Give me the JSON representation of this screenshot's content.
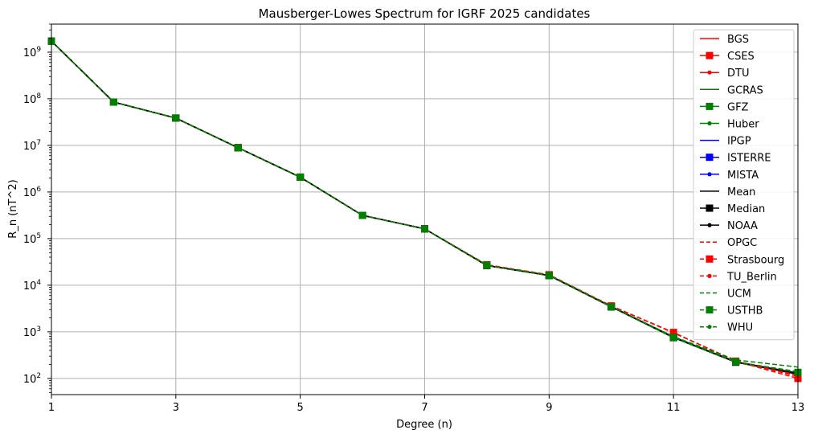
{
  "chart_data": {
    "type": "line",
    "title": "Mausberger-Lowes Spectrum for IGRF 2025 candidates",
    "xlabel": "Degree (n)",
    "ylabel": "R_n (nT^2)",
    "x": [
      1,
      2,
      3,
      4,
      5,
      6,
      7,
      8,
      9,
      10,
      11,
      12,
      13
    ],
    "xlim": [
      1,
      13
    ],
    "ylim": [
      45,
      4000000000
    ],
    "yscale": "log",
    "x_ticks": [
      "1",
      "3",
      "5",
      "7",
      "9",
      "11",
      "13"
    ],
    "y_ticks": [
      {
        "base": "10",
        "exp": "2",
        "value": 100
      },
      {
        "base": "10",
        "exp": "3",
        "value": 1000
      },
      {
        "base": "10",
        "exp": "4",
        "value": 10000
      },
      {
        "base": "10",
        "exp": "5",
        "value": 100000
      },
      {
        "base": "10",
        "exp": "6",
        "value": 1000000
      },
      {
        "base": "10",
        "exp": "7",
        "value": 10000000
      },
      {
        "base": "10",
        "exp": "8",
        "value": 100000000
      },
      {
        "base": "10",
        "exp": "9",
        "value": 1000000000
      }
    ],
    "grid": true,
    "legend_position": "top-right",
    "series": [
      {
        "name": "BGS",
        "color": "#ff0000",
        "dash": "solid",
        "marker": "none",
        "values": [
          1730000000,
          85000000,
          38500000,
          8900000,
          2080000,
          315000,
          162000,
          26500,
          16200,
          3450,
          760,
          225,
          125
        ]
      },
      {
        "name": "CSES",
        "color": "#ff0000",
        "dash": "solid",
        "marker": "square",
        "values": [
          1730000000,
          85000000,
          38500000,
          8900000,
          2080000,
          315000,
          162000,
          26700,
          16300,
          3500,
          780,
          228,
          122
        ]
      },
      {
        "name": "DTU",
        "color": "#ff0000",
        "dash": "solid",
        "marker": "dot",
        "values": [
          1730000000,
          85000000,
          38500000,
          8900000,
          2080000,
          315000,
          162000,
          26500,
          16200,
          3450,
          755,
          224,
          126
        ]
      },
      {
        "name": "GCRAS",
        "color": "#008000",
        "dash": "solid",
        "marker": "none",
        "values": [
          1730000000,
          85000000,
          38500000,
          8900000,
          2080000,
          315000,
          162000,
          26600,
          16200,
          3450,
          760,
          226,
          128
        ]
      },
      {
        "name": "GFZ",
        "color": "#008000",
        "dash": "solid",
        "marker": "square",
        "values": [
          1730000000,
          85000000,
          38500000,
          8900000,
          2080000,
          315000,
          162000,
          26400,
          16100,
          3420,
          750,
          222,
          124
        ]
      },
      {
        "name": "Huber",
        "color": "#008000",
        "dash": "solid",
        "marker": "dot",
        "values": [
          1730000000,
          85000000,
          38500000,
          8900000,
          2080000,
          315000,
          162000,
          26500,
          16200,
          3450,
          760,
          225,
          125
        ]
      },
      {
        "name": "IPGP",
        "color": "#0000ff",
        "dash": "solid",
        "marker": "none",
        "values": [
          1730000000,
          85000000,
          38500000,
          8900000,
          2080000,
          315000,
          162000,
          26500,
          16200,
          3450,
          760,
          225,
          124
        ]
      },
      {
        "name": "ISTERRE",
        "color": "#0000ff",
        "dash": "solid",
        "marker": "square",
        "values": [
          1730000000,
          85000000,
          38500000,
          8900000,
          2080000,
          315000,
          162000,
          26500,
          16200,
          3450,
          758,
          224,
          125
        ]
      },
      {
        "name": "MISTA",
        "color": "#0000ff",
        "dash": "solid",
        "marker": "dot",
        "values": [
          1730000000,
          85000000,
          38500000,
          8900000,
          2080000,
          315000,
          162000,
          26500,
          16200,
          3450,
          760,
          225,
          126
        ]
      },
      {
        "name": "Mean",
        "color": "#000000",
        "dash": "solid",
        "marker": "none",
        "values": [
          1730000000,
          85000000,
          38500000,
          8900000,
          2080000,
          315000,
          162000,
          26500,
          16200,
          3460,
          770,
          228,
          130
        ]
      },
      {
        "name": "Median",
        "color": "#000000",
        "dash": "solid",
        "marker": "square",
        "values": [
          1730000000,
          85000000,
          38500000,
          8900000,
          2080000,
          315000,
          162000,
          26500,
          16200,
          3450,
          760,
          225,
          125
        ]
      },
      {
        "name": "NOAA",
        "color": "#000000",
        "dash": "solid",
        "marker": "dot",
        "values": [
          1730000000,
          85000000,
          38500000,
          8900000,
          2080000,
          315000,
          162000,
          26500,
          16200,
          3450,
          760,
          225,
          127
        ]
      },
      {
        "name": "OPGC",
        "color": "#ff0000",
        "dash": "dashed",
        "marker": "none",
        "values": [
          1730000000,
          85000000,
          38500000,
          8900000,
          2080000,
          315000,
          162000,
          26800,
          16500,
          3600,
          950,
          240,
          110
        ]
      },
      {
        "name": "Strasbourg",
        "color": "#ff0000",
        "dash": "dashed",
        "marker": "square",
        "values": [
          1730000000,
          85000000,
          38500000,
          8900000,
          2080000,
          315000,
          162000,
          27500,
          16800,
          3600,
          970,
          235,
          100
        ]
      },
      {
        "name": "TU_Berlin",
        "color": "#ff0000",
        "dash": "dashed",
        "marker": "dot",
        "values": [
          1730000000,
          85000000,
          38500000,
          8900000,
          2080000,
          315000,
          162000,
          26600,
          16300,
          3480,
          780,
          230,
          118
        ]
      },
      {
        "name": "UCM",
        "color": "#008000",
        "dash": "dashed",
        "marker": "none",
        "values": [
          1730000000,
          85000000,
          38500000,
          8900000,
          2080000,
          315000,
          162000,
          26600,
          16300,
          3500,
          790,
          250,
          175
        ]
      },
      {
        "name": "USTHB",
        "color": "#008000",
        "dash": "dashed",
        "marker": "square",
        "values": [
          1730000000,
          85000000,
          38500000,
          8900000,
          2080000,
          315000,
          162000,
          26500,
          16200,
          3460,
          765,
          228,
          135
        ]
      },
      {
        "name": "WHU",
        "color": "#008000",
        "dash": "dashed",
        "marker": "dot",
        "values": [
          1730000000,
          85000000,
          38500000,
          8900000,
          2080000,
          315000,
          162000,
          26500,
          16200,
          3450,
          760,
          226,
          140
        ]
      }
    ]
  }
}
